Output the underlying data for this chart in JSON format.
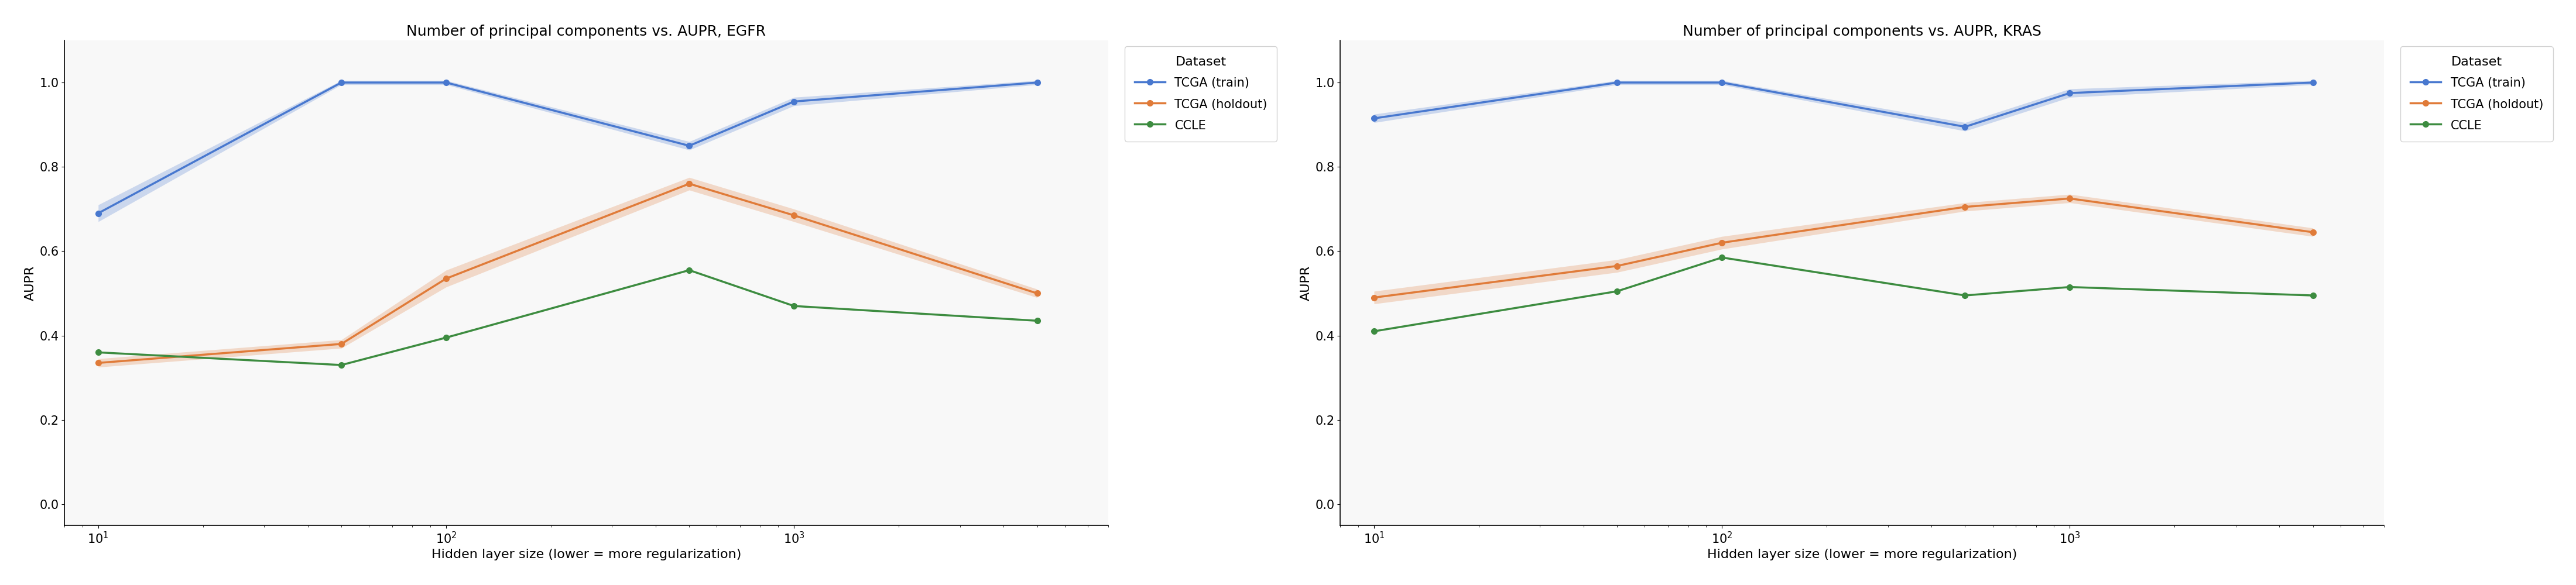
{
  "egfr": {
    "title": "Number of principal components vs. AUPR, EGFR",
    "x": [
      10,
      50,
      100,
      500,
      1000,
      5000
    ],
    "tcga_train": [
      0.69,
      1.0,
      1.0,
      0.85,
      0.955,
      1.0
    ],
    "tcga_train_err": [
      0.02,
      0.005,
      0.005,
      0.01,
      0.01,
      0.005
    ],
    "tcga_holdout": [
      0.335,
      0.38,
      0.535,
      0.76,
      0.685,
      0.5
    ],
    "tcga_holdout_err": [
      0.01,
      0.01,
      0.02,
      0.015,
      0.015,
      0.01
    ],
    "ccle": [
      0.36,
      0.33,
      0.395,
      0.555,
      0.47,
      0.435
    ],
    "ccle_err": [
      0.0,
      0.0,
      0.0,
      0.0,
      0.0,
      0.0
    ]
  },
  "kras": {
    "title": "Number of principal components vs. AUPR, KRAS",
    "x": [
      10,
      50,
      100,
      500,
      1000,
      5000
    ],
    "tcga_train": [
      0.915,
      1.0,
      1.0,
      0.895,
      0.975,
      1.0
    ],
    "tcga_train_err": [
      0.01,
      0.005,
      0.005,
      0.01,
      0.01,
      0.005
    ],
    "tcga_holdout": [
      0.49,
      0.565,
      0.62,
      0.705,
      0.725,
      0.645
    ],
    "tcga_holdout_err": [
      0.015,
      0.015,
      0.015,
      0.01,
      0.01,
      0.01
    ],
    "ccle": [
      0.41,
      0.505,
      0.585,
      0.495,
      0.515,
      0.495
    ],
    "ccle_err": [
      0.0,
      0.0,
      0.0,
      0.0,
      0.0,
      0.0
    ]
  },
  "xlabel": "Hidden layer size (lower = more regularization)",
  "ylabel": "AUPR",
  "legend_title": "Dataset",
  "colors": {
    "tcga_train": "#4878CF",
    "tcga_holdout": "#e07b39",
    "ccle": "#3d8c40"
  },
  "ylim": [
    -0.05,
    1.1
  ],
  "figsize": [
    44.0,
    10.0
  ],
  "title_fontsize": 18,
  "label_fontsize": 16,
  "tick_fontsize": 15,
  "legend_fontsize": 15,
  "legend_title_fontsize": 16,
  "linewidth": 2.5,
  "markersize": 7
}
